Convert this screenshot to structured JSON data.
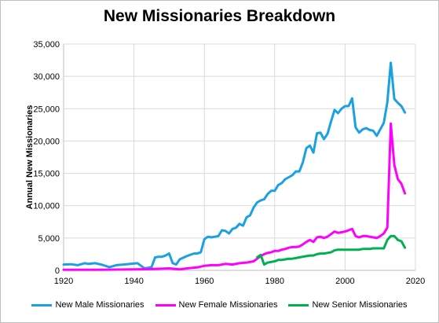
{
  "chart_data": {
    "type": "line",
    "title": "New Missionaries Breakdown",
    "xlabel": "",
    "ylabel": "Annual New Missionaries",
    "xlim": [
      1920,
      2020
    ],
    "ylim": [
      0,
      35000
    ],
    "x_ticks": [
      1920,
      1940,
      1960,
      1980,
      2000,
      2020
    ],
    "y_ticks": [
      0,
      5000,
      10000,
      15000,
      20000,
      25000,
      30000,
      35000
    ],
    "y_tick_labels": [
      "0",
      "5,000",
      "10,000",
      "15,000",
      "20,000",
      "25,000",
      "30,000",
      "35,000"
    ],
    "grid": "both",
    "legend_position": "bottom",
    "series": [
      {
        "name": "New Male Missionaries",
        "color": "#1ba1e2",
        "points": [
          [
            1920,
            900
          ],
          [
            1922,
            950
          ],
          [
            1924,
            800
          ],
          [
            1926,
            1100
          ],
          [
            1927,
            1000
          ],
          [
            1929,
            1100
          ],
          [
            1931,
            850
          ],
          [
            1933,
            500
          ],
          [
            1935,
            800
          ],
          [
            1937,
            900
          ],
          [
            1939,
            1000
          ],
          [
            1941,
            1100
          ],
          [
            1942,
            700
          ],
          [
            1943,
            300
          ],
          [
            1944,
            400
          ],
          [
            1945,
            500
          ],
          [
            1946,
            2000
          ],
          [
            1947,
            2100
          ],
          [
            1948,
            2100
          ],
          [
            1949,
            2300
          ],
          [
            1950,
            2600
          ],
          [
            1951,
            1100
          ],
          [
            1952,
            900
          ],
          [
            1953,
            1700
          ],
          [
            1955,
            2200
          ],
          [
            1957,
            2600
          ],
          [
            1958,
            2600
          ],
          [
            1959,
            2800
          ],
          [
            1960,
            4800
          ],
          [
            1961,
            5200
          ],
          [
            1962,
            5100
          ],
          [
            1963,
            5200
          ],
          [
            1964,
            5300
          ],
          [
            1965,
            6200
          ],
          [
            1966,
            6100
          ],
          [
            1967,
            5700
          ],
          [
            1968,
            6400
          ],
          [
            1969,
            6600
          ],
          [
            1970,
            7200
          ],
          [
            1971,
            6900
          ],
          [
            1972,
            8200
          ],
          [
            1973,
            8500
          ],
          [
            1974,
            9700
          ],
          [
            1975,
            10500
          ],
          [
            1976,
            10800
          ],
          [
            1977,
            11000
          ],
          [
            1978,
            11800
          ],
          [
            1979,
            12300
          ],
          [
            1980,
            12300
          ],
          [
            1981,
            13200
          ],
          [
            1982,
            13500
          ],
          [
            1983,
            14100
          ],
          [
            1984,
            14400
          ],
          [
            1985,
            14700
          ],
          [
            1986,
            15300
          ],
          [
            1987,
            15300
          ],
          [
            1988,
            16700
          ],
          [
            1989,
            18900
          ],
          [
            1990,
            19300
          ],
          [
            1991,
            18200
          ],
          [
            1992,
            21200
          ],
          [
            1993,
            21300
          ],
          [
            1994,
            20300
          ],
          [
            1995,
            21100
          ],
          [
            1996,
            23000
          ],
          [
            1997,
            24800
          ],
          [
            1998,
            24300
          ],
          [
            1999,
            25000
          ],
          [
            2000,
            25400
          ],
          [
            2001,
            25400
          ],
          [
            2002,
            26600
          ],
          [
            2003,
            22100
          ],
          [
            2004,
            21300
          ],
          [
            2005,
            21800
          ],
          [
            2006,
            22000
          ],
          [
            2007,
            21700
          ],
          [
            2008,
            21600
          ],
          [
            2009,
            20800
          ],
          [
            2010,
            21800
          ],
          [
            2011,
            22800
          ],
          [
            2012,
            26000
          ],
          [
            2013,
            32100
          ],
          [
            2014,
            26500
          ],
          [
            2015,
            25900
          ],
          [
            2016,
            25400
          ],
          [
            2017,
            24400
          ]
        ]
      },
      {
        "name": "New Female Missionaries",
        "color": "#ff00ff",
        "points": [
          [
            1920,
            100
          ],
          [
            1930,
            100
          ],
          [
            1940,
            150
          ],
          [
            1945,
            200
          ],
          [
            1950,
            300
          ],
          [
            1953,
            150
          ],
          [
            1955,
            300
          ],
          [
            1958,
            450
          ],
          [
            1960,
            700
          ],
          [
            1962,
            800
          ],
          [
            1964,
            800
          ],
          [
            1966,
            1000
          ],
          [
            1968,
            900
          ],
          [
            1970,
            1100
          ],
          [
            1972,
            1200
          ],
          [
            1974,
            1400
          ],
          [
            1975,
            1800
          ],
          [
            1976,
            2200
          ],
          [
            1977,
            2500
          ],
          [
            1978,
            2700
          ],
          [
            1979,
            2800
          ],
          [
            1980,
            3000
          ],
          [
            1981,
            3000
          ],
          [
            1982,
            3200
          ],
          [
            1983,
            3300
          ],
          [
            1984,
            3500
          ],
          [
            1985,
            3600
          ],
          [
            1986,
            3600
          ],
          [
            1987,
            3700
          ],
          [
            1988,
            4000
          ],
          [
            1989,
            4400
          ],
          [
            1990,
            4700
          ],
          [
            1991,
            4400
          ],
          [
            1992,
            5100
          ],
          [
            1993,
            5200
          ],
          [
            1994,
            5000
          ],
          [
            1995,
            5200
          ],
          [
            1996,
            5600
          ],
          [
            1997,
            6000
          ],
          [
            1998,
            5800
          ],
          [
            1999,
            5900
          ],
          [
            2000,
            6000
          ],
          [
            2001,
            6200
          ],
          [
            2002,
            6400
          ],
          [
            2003,
            5300
          ],
          [
            2004,
            5100
          ],
          [
            2005,
            5300
          ],
          [
            2006,
            5300
          ],
          [
            2007,
            5200
          ],
          [
            2008,
            5100
          ],
          [
            2009,
            5000
          ],
          [
            2010,
            5300
          ],
          [
            2011,
            5700
          ],
          [
            2012,
            6600
          ],
          [
            2013,
            22700
          ],
          [
            2014,
            16300
          ],
          [
            2015,
            14100
          ],
          [
            2016,
            13400
          ],
          [
            2017,
            11900
          ]
        ]
      },
      {
        "name": "New Senior Missionaries",
        "color": "#00b050",
        "points": [
          [
            1975,
            2000
          ],
          [
            1976,
            2400
          ],
          [
            1977,
            900
          ],
          [
            1978,
            1200
          ],
          [
            1979,
            1300
          ],
          [
            1980,
            1400
          ],
          [
            1981,
            1600
          ],
          [
            1982,
            1600
          ],
          [
            1983,
            1700
          ],
          [
            1984,
            1800
          ],
          [
            1985,
            1800
          ],
          [
            1986,
            1900
          ],
          [
            1987,
            2000
          ],
          [
            1988,
            2100
          ],
          [
            1989,
            2200
          ],
          [
            1990,
            2300
          ],
          [
            1991,
            2300
          ],
          [
            1992,
            2500
          ],
          [
            1993,
            2600
          ],
          [
            1994,
            2600
          ],
          [
            1995,
            2700
          ],
          [
            1996,
            2800
          ],
          [
            1997,
            3100
          ],
          [
            1998,
            3200
          ],
          [
            1999,
            3200
          ],
          [
            2000,
            3200
          ],
          [
            2001,
            3200
          ],
          [
            2002,
            3200
          ],
          [
            2003,
            3200
          ],
          [
            2004,
            3200
          ],
          [
            2005,
            3300
          ],
          [
            2006,
            3300
          ],
          [
            2007,
            3300
          ],
          [
            2008,
            3400
          ],
          [
            2009,
            3400
          ],
          [
            2010,
            3400
          ],
          [
            2011,
            3400
          ],
          [
            2012,
            4700
          ],
          [
            2013,
            5300
          ],
          [
            2014,
            5300
          ],
          [
            2015,
            4700
          ],
          [
            2016,
            4500
          ],
          [
            2017,
            3500
          ]
        ]
      }
    ]
  }
}
